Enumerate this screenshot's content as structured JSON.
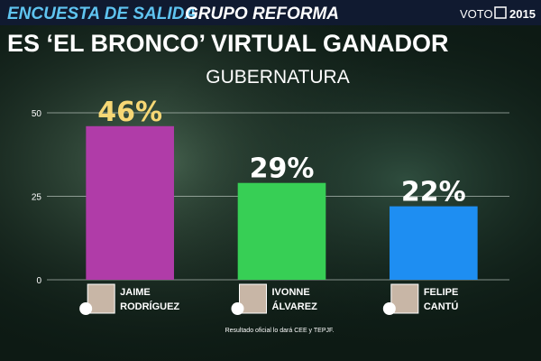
{
  "header": {
    "title_part1": "ENCUESTA DE SALIDA",
    "title_part2": "GRUPO REFORMA",
    "brand": "VOTO",
    "brand_year": "2015"
  },
  "headline": "ES ‘EL BRONCO’ VIRTUAL GANADOR",
  "footnote": "Resultado oficial lo dará CEE y TEPJF.",
  "chart_data": {
    "type": "bar",
    "title": "GUBERNATURA",
    "categories": [
      "JAIME RODRÍGUEZ",
      "IVONNE ÁLVAREZ",
      "FELIPE CANTÚ"
    ],
    "values": [
      46,
      29,
      22
    ],
    "value_labels": [
      "46%",
      "29%",
      "22%"
    ],
    "colors": [
      "#b03ca8",
      "#37cf55",
      "#1e8ef2"
    ],
    "value_label_colors": [
      "#f6d775",
      "#ffffff",
      "#ffffff"
    ],
    "ylim": [
      0,
      50
    ],
    "yticks": [
      0,
      25,
      50
    ],
    "grid": true
  }
}
